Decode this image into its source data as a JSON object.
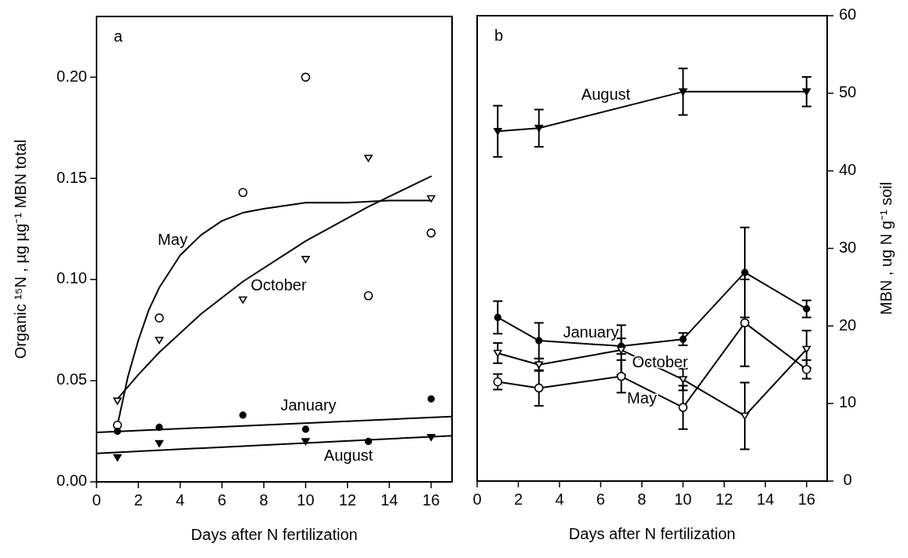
{
  "chart_data": [
    {
      "type": "scatter",
      "title": "a",
      "xlabel": "Days after N fertilization",
      "ylabel": "Organic ¹⁵N , µg µg⁻¹ MBN total",
      "xlim": [
        0,
        17
      ],
      "xticks": [
        0,
        2,
        4,
        6,
        8,
        10,
        12,
        14,
        16
      ],
      "ylim": [
        0,
        0.23
      ],
      "yticks": [
        {
          "value": 0,
          "label": "0.00"
        },
        {
          "value": 0.05,
          "label": "0.05"
        },
        {
          "value": 0.1,
          "label": "0.10"
        },
        {
          "value": 0.15,
          "label": "0.15"
        },
        {
          "value": 0.2,
          "label": "0.20"
        }
      ],
      "x": [
        1,
        3,
        7,
        10,
        13,
        16
      ],
      "series": [
        {
          "marker": "circle",
          "color": "#ffffff",
          "values": [
            0.028,
            0.081,
            0.143,
            0.2,
            0.092,
            0.123
          ]
        },
        {
          "marker": "triangle",
          "color": "#ffffff",
          "values": [
            0.04,
            0.07,
            0.09,
            0.11,
            0.16,
            0.14
          ]
        },
        {
          "marker": "circle",
          "color": "#000000",
          "values": [
            0.025,
            0.027,
            0.033,
            0.026,
            0.02,
            0.041
          ]
        },
        {
          "marker": "triangle",
          "color": "#000000",
          "values": [
            0.012,
            0.019,
            null,
            0.02,
            null,
            0.022
          ]
        },
        {
          "type": "line",
          "name": "May",
          "marker": "none",
          "color": "#000000",
          "x": [
            1,
            1.5,
            2,
            2.5,
            3,
            4,
            5,
            6,
            7,
            8,
            10,
            12,
            14,
            16
          ],
          "values": [
            0.028,
            0.052,
            0.07,
            0.085,
            0.096,
            0.112,
            0.122,
            0.129,
            0.133,
            0.135,
            0.138,
            0.138,
            0.139,
            0.139
          ]
        },
        {
          "type": "line",
          "name": "October",
          "marker": "none",
          "color": "#000000",
          "x": [
            1,
            2,
            3,
            5,
            7,
            10,
            13,
            16
          ],
          "values": [
            0.041,
            0.053,
            0.064,
            0.083,
            0.099,
            0.119,
            0.136,
            0.151
          ]
        },
        {
          "type": "line",
          "name": "January",
          "marker": "none",
          "color": "#000000",
          "x": [
            0,
            17
          ],
          "values": [
            0.0244,
            0.0323
          ]
        },
        {
          "type": "line",
          "name": "August",
          "marker": "none",
          "color": "#000000",
          "x": [
            0,
            17
          ],
          "values": [
            0.0141,
            0.0228
          ]
        }
      ]
    },
    {
      "type": "line",
      "title": "b",
      "xlabel": "Days after N fertilization",
      "y2label": "MBN , ug N g⁻¹ soil",
      "xlim": [
        0,
        17
      ],
      "xticks": [
        0,
        2,
        4,
        6,
        8,
        10,
        12,
        14,
        16
      ],
      "y2lim": [
        0,
        60
      ],
      "y2ticks": [
        0,
        10,
        20,
        30,
        40,
        50,
        60
      ],
      "x": [
        1,
        3,
        7,
        10,
        13,
        16
      ],
      "series": [
        {
          "axis": "y2",
          "name": "August",
          "marker": "triangle",
          "color": "#000000",
          "x": [
            1,
            3,
            10,
            16
          ],
          "values": [
            45.1,
            45.5,
            50.2,
            50.2
          ],
          "errors": [
            3.3,
            2.4,
            3.0,
            1.9
          ]
        },
        {
          "axis": "y2",
          "name": "January",
          "marker": "circle",
          "color": "#000000",
          "values": [
            21.1,
            18.1,
            17.4,
            18.3,
            26.9,
            22.2
          ],
          "errors": [
            2.1,
            2.3,
            1.0,
            0.8,
            5.8,
            1.1
          ]
        },
        {
          "axis": "y2",
          "name": "October",
          "marker": "triangle",
          "color": "#ffffff",
          "values": [
            16.5,
            15.0,
            16.9,
            13.1,
            8.4,
            17.0
          ],
          "errors": [
            1.3,
            0.8,
            3.2,
            1.4,
            4.3,
            2.4
          ]
        },
        {
          "axis": "y2",
          "name": "May",
          "marker": "circle",
          "color": "#ffffff",
          "values": [
            12.8,
            12.0,
            13.5,
            9.5,
            20.4,
            14.4
          ],
          "errors": [
            1.0,
            2.3,
            2.1,
            2.8,
            5.6,
            1.2
          ]
        }
      ]
    }
  ]
}
